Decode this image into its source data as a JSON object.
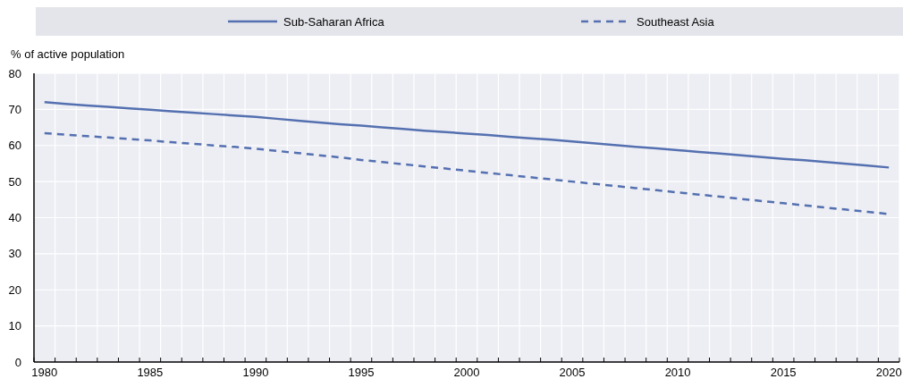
{
  "chart_data": {
    "type": "line",
    "ylabel": "% of active population",
    "categories": [
      "1980",
      null,
      null,
      null,
      null,
      "1985",
      null,
      null,
      null,
      null,
      "1990",
      null,
      null,
      null,
      null,
      "1995",
      null,
      null,
      null,
      null,
      "2000",
      null,
      null,
      null,
      null,
      "2005",
      null,
      null,
      null,
      null,
      "2010",
      null,
      null,
      null,
      null,
      "2015",
      null,
      null,
      null,
      null,
      "2020"
    ],
    "series": [
      {
        "name": "Sub-Saharan Africa",
        "color": "#5470b0",
        "line_style": "solid",
        "values": [
          72.0,
          71.5,
          71.1,
          70.7,
          70.3,
          69.9,
          69.5,
          69.1,
          68.7,
          68.3,
          67.9,
          67.4,
          66.9,
          66.4,
          65.9,
          65.5,
          65.0,
          64.6,
          64.1,
          63.7,
          63.3,
          62.9,
          62.4,
          62.0,
          61.6,
          61.1,
          60.6,
          60.1,
          59.6,
          59.2,
          58.7,
          58.2,
          57.8,
          57.3,
          56.8,
          56.3,
          55.9,
          55.4,
          54.9,
          54.4,
          53.9
        ]
      },
      {
        "name": "Southeast Asia",
        "color": "#5470b0",
        "line_style": "dashed",
        "values": [
          63.4,
          63.0,
          62.6,
          62.2,
          61.8,
          61.4,
          60.9,
          60.5,
          60.0,
          59.6,
          59.1,
          58.5,
          57.9,
          57.3,
          56.7,
          56.0,
          55.4,
          54.8,
          54.2,
          53.6,
          53.0,
          52.4,
          51.8,
          51.2,
          50.6,
          50.0,
          49.4,
          48.8,
          48.2,
          47.6,
          47.0,
          46.4,
          45.8,
          45.2,
          44.6,
          44.0,
          43.4,
          42.8,
          42.2,
          41.6,
          41.0
        ]
      }
    ],
    "ylim": [
      0,
      80
    ],
    "yticks": [
      0,
      10,
      20,
      30,
      40,
      50,
      60,
      70,
      80
    ],
    "grid": true,
    "legend": "top",
    "marker": "none"
  }
}
